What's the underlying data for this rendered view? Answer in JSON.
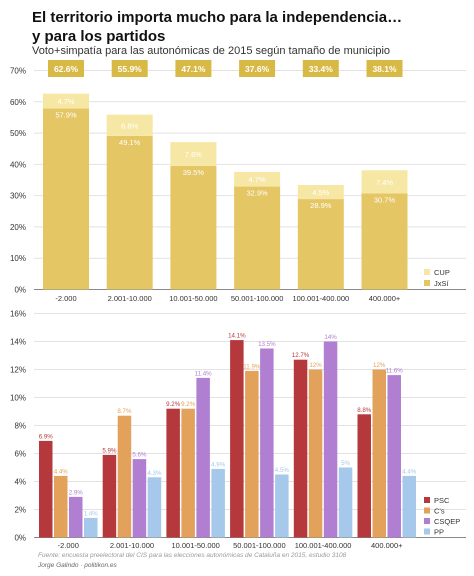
{
  "header": {
    "title_line1": "El territorio importa mucho para la independencia…",
    "title_line2": "y para los partidos",
    "subtitle": "Voto+simpatía para las autonómicas de 2015 según tamaño de municipio"
  },
  "footer": {
    "source": "Fuente: encuesta preelectoral del CIS para las elecciones autonómicas de Cataluña en 2015, estudio 3108",
    "author": "Jorge Galindo · politikon.es"
  },
  "chart_data": [
    {
      "type": "bar",
      "stacked": true,
      "categories": [
        "-2.000",
        "2.001-10.000",
        "10.001-50.000",
        "50.001-100.000",
        "100.001-400.000",
        "400.000+"
      ],
      "y_ticks": [
        "0%",
        "10%",
        "20%",
        "30%",
        "40%",
        "50%",
        "60%",
        "70%"
      ],
      "ylim": [
        0,
        70
      ],
      "series": [
        {
          "name": "JxSí",
          "color": "#e4c665",
          "values": [
            57.9,
            49.1,
            39.5,
            32.9,
            28.9,
            30.7
          ],
          "labels": [
            "57.9%",
            "49.1%",
            "39.5%",
            "32.9%",
            "28.9%",
            "30.7%"
          ]
        },
        {
          "name": "CUP",
          "color": "#f7e7a5",
          "values": [
            4.7,
            6.8,
            7.6,
            4.7,
            4.5,
            7.4
          ],
          "labels": [
            "4.7%",
            "6.8%",
            "7.6%",
            "4.7%",
            "4.5%",
            "7.4%"
          ]
        }
      ],
      "totals": [
        62.6,
        55.9,
        47.1,
        37.6,
        33.4,
        38.1
      ],
      "total_labels": [
        "62.6%",
        "55.9%",
        "47.1%",
        "37.6%",
        "33.4%",
        "38.1%"
      ],
      "total_badge_color": "#d9b945",
      "legend_position": "bottom-right",
      "grid": true
    },
    {
      "type": "bar",
      "stacked": false,
      "categories": [
        "-2.000",
        "2.001-10.000",
        "10.001-50.000",
        "50.001-100.000",
        "100.001-400.000",
        "400.000+"
      ],
      "y_ticks": [
        "0%",
        "2%",
        "4%",
        "6%",
        "8%",
        "10%",
        "12%",
        "14%",
        "16%"
      ],
      "ylim": [
        0,
        16
      ],
      "series": [
        {
          "name": "PSC",
          "color": "#b5383d",
          "values": [
            6.9,
            5.9,
            9.2,
            14.1,
            12.7,
            8.8
          ],
          "labels": [
            "6.9%",
            "5.9%",
            "9.2%",
            "14.1%",
            "12.7%",
            "8.8%"
          ]
        },
        {
          "name": "C's",
          "color": "#e2a25c",
          "values": [
            4.4,
            8.7,
            9.2,
            11.9,
            12,
            12
          ],
          "labels": [
            "4.4%",
            "8.7%",
            "9.2%",
            "11.9%",
            "12%",
            "12%"
          ]
        },
        {
          "name": "CSQEP",
          "color": "#b07fd1",
          "values": [
            2.9,
            5.6,
            11.4,
            13.5,
            14,
            11.6
          ],
          "labels": [
            "2.9%",
            "5.6%",
            "11.4%",
            "13.5%",
            "14%",
            "11.6%"
          ]
        },
        {
          "name": "PP",
          "color": "#a6c8ea",
          "values": [
            1.4,
            4.3,
            4.9,
            4.5,
            5,
            4.4
          ],
          "labels": [
            "1.4%",
            "4.3%",
            "4.9%",
            "4.5%",
            "5%",
            "4.4%"
          ]
        }
      ],
      "legend_position": "bottom-right",
      "grid": true
    }
  ]
}
